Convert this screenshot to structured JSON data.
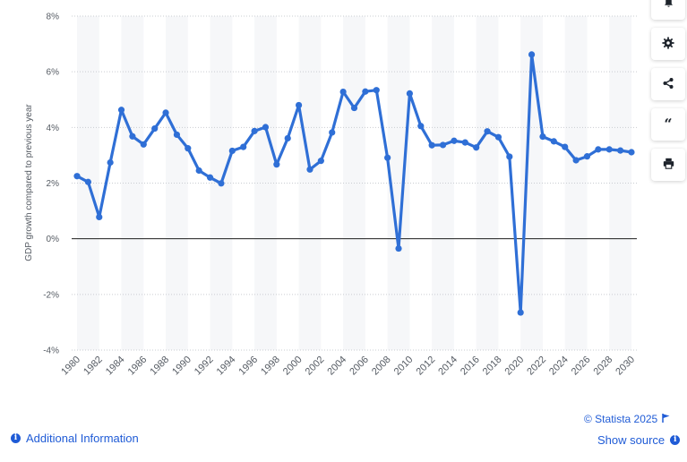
{
  "chart_data": {
    "type": "line",
    "ylabel": "GDP growth compared to previous year",
    "x": [
      1980,
      1981,
      1982,
      1983,
      1984,
      1985,
      1986,
      1987,
      1988,
      1989,
      1990,
      1991,
      1992,
      1993,
      1994,
      1995,
      1996,
      1997,
      1998,
      1999,
      2000,
      2001,
      2002,
      2003,
      2004,
      2005,
      2006,
      2007,
      2008,
      2009,
      2010,
      2011,
      2012,
      2013,
      2014,
      2015,
      2016,
      2017,
      2018,
      2019,
      2020,
      2021,
      2022,
      2023,
      2024,
      2025,
      2026,
      2027,
      2028,
      2029,
      2030
    ],
    "series": [
      {
        "values": [
          2.25,
          2.04,
          0.78,
          2.74,
          4.63,
          3.68,
          3.39,
          3.96,
          4.53,
          3.74,
          3.25,
          2.45,
          2.2,
          1.99,
          3.16,
          3.3,
          3.87,
          4.01,
          2.67,
          3.61,
          4.8,
          2.49,
          2.8,
          3.82,
          5.28,
          4.7,
          5.29,
          5.34,
          2.91,
          -0.35,
          5.22,
          4.05,
          3.36,
          3.37,
          3.52,
          3.46,
          3.28,
          3.86,
          3.65,
          2.95,
          -2.65,
          6.62,
          3.67,
          3.5,
          3.3,
          2.82,
          2.96,
          3.21,
          3.21,
          3.17,
          3.11
        ]
      }
    ],
    "x_tick_labels": [
      "1980",
      "1982",
      "1984",
      "1986",
      "1988",
      "1990",
      "1992",
      "1994",
      "1996",
      "1998",
      "2000",
      "2002",
      "2004",
      "2006",
      "2008",
      "2010",
      "2012",
      "2014",
      "2016",
      "2018",
      "2020",
      "2022",
      "2024",
      "2026",
      "2028",
      "2030"
    ],
    "y_ticks": [
      8,
      6,
      4,
      2,
      0,
      -2,
      -4
    ],
    "y_tick_labels": [
      "8%",
      "6%",
      "4%",
      "2%",
      "0%",
      "-2%",
      "-4%"
    ],
    "ylim": [
      -4,
      8
    ],
    "grid": true,
    "line_color": "#2f6fd6"
  },
  "toolbar": {
    "icons": [
      "bell-icon",
      "gear-icon",
      "share-icon",
      "quote-icon",
      "print-icon"
    ]
  },
  "footer": {
    "additional_info": "Additional Information",
    "copyright": "© Statista 2025",
    "show_source": "Show source"
  }
}
